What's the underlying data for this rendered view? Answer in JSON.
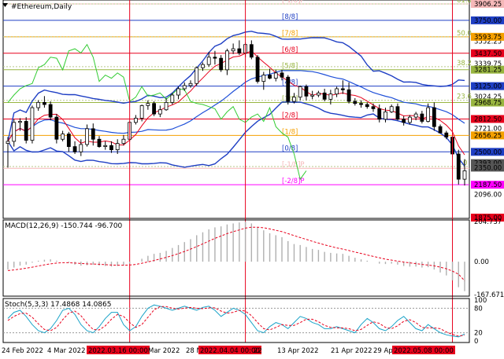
{
  "header": {
    "title": "#Ethereum,Daily"
  },
  "colors": {
    "background": "#ffffff",
    "frame": "#000000",
    "candle_bull": "#ffffff",
    "candle_bear": "#000000",
    "bollinger": "#1f3fc4",
    "ma_fast": "#e8001c",
    "ma_slow": "#1e4fd8",
    "ichimoku_lagging": "#33cc33",
    "macd_signal": "#e8001c",
    "macd_hist": "#b0b0b0",
    "stoch_main": "#1aa3c8",
    "stoch_signal": "#e8001c",
    "vline": "#e8001c",
    "label_red": "#e8001c",
    "label_blue": "#1f3fc4",
    "label_orange": "#f5a000",
    "label_green": "#98b540",
    "label_magenta": "#ff00ff",
    "label_pink": "#f5b8b8"
  },
  "chart_data": [
    {
      "type": "candlestick",
      "title": "#Ethereum,Daily",
      "x": [
        "24 Feb 2022",
        "25 Feb 2022",
        "26 Feb 2022",
        "27 Feb 2022",
        "28 Feb 2022",
        "1 Mar 2022",
        "2 Mar 2022",
        "3 Mar 2022",
        "4 Mar 2022",
        "5 Mar 2022",
        "6 Mar 2022",
        "7 Mar 2022",
        "8 Mar 2022",
        "9 Mar 2022",
        "10 Mar 2022",
        "11 Mar 2022",
        "12 Mar 2022",
        "13 Mar 2022",
        "14 Mar 2022",
        "15 Mar 2022",
        "16 Mar 2022",
        "17 Mar 2022",
        "18 Mar 2022",
        "19 Mar 2022",
        "20 Mar 2022",
        "21 Mar 2022",
        "22 Mar 2022",
        "23 Mar 2022",
        "24 Mar 2022",
        "25 Mar 2022",
        "26 Mar 2022",
        "27 Mar 2022",
        "28 Mar 2022",
        "29 Mar 2022",
        "30 Mar 2022",
        "31 Mar 2022",
        "1 Apr 2022",
        "2 Apr 2022",
        "3 Apr 2022",
        "4 Apr 2022",
        "5 Apr 2022",
        "6 Apr 2022",
        "7 Apr 2022",
        "8 Apr 2022",
        "9 Apr 2022",
        "10 Apr 2022",
        "11 Apr 2022",
        "12 Apr 2022",
        "13 Apr 2022",
        "14 Apr 2022",
        "15 Apr 2022",
        "16 Apr 2022",
        "17 Apr 2022",
        "18 Apr 2022",
        "19 Apr 2022",
        "20 Apr 2022",
        "21 Apr 2022",
        "22 Apr 2022",
        "23 Apr 2022",
        "24 Apr 2022",
        "25 Apr 2022",
        "26 Apr 2022",
        "27 Apr 2022",
        "28 Apr 2022",
        "29 Apr 2022",
        "30 Apr 2022",
        "1 May 2022",
        "2 May 2022",
        "3 May 2022",
        "4 May 2022",
        "5 May 2022",
        "6 May 2022",
        "7 May 2022",
        "8 May 2022",
        "9 May 2022",
        "10 May 2022"
      ],
      "open": [
        2580,
        2600,
        2780,
        2790,
        2610,
        2920,
        2970,
        2950,
        2830,
        2620,
        2670,
        2550,
        2500,
        2570,
        2720,
        2620,
        2550,
        2560,
        2520,
        2580,
        2620,
        2780,
        2820,
        2940,
        2960,
        2860,
        2900,
        2970,
        3040,
        3100,
        3130,
        3150,
        3300,
        3330,
        3400,
        3390,
        3280,
        3460,
        3480,
        3440,
        3520,
        3400,
        3170,
        3230,
        3200,
        3250,
        3210,
        2980,
        3020,
        3120,
        3030,
        3040,
        3060,
        3000,
        3050,
        3100,
        3090,
        2980,
        2960,
        2950,
        2930,
        2910,
        2810,
        2880,
        2930,
        2810,
        2780,
        2830,
        2860,
        2790,
        2920,
        2740,
        2680,
        2640,
        2480,
        2240
      ],
      "high": [
        2640,
        2810,
        2820,
        2830,
        2940,
        2990,
        3030,
        2980,
        2860,
        2700,
        2690,
        2600,
        2620,
        2760,
        2770,
        2650,
        2600,
        2600,
        2620,
        2660,
        2790,
        2850,
        2950,
        2990,
        2980,
        2940,
        3010,
        3060,
        3120,
        3160,
        3180,
        3310,
        3350,
        3450,
        3460,
        3420,
        3480,
        3530,
        3560,
        3540,
        3560,
        3420,
        3260,
        3290,
        3280,
        3280,
        3230,
        3060,
        3130,
        3140,
        3080,
        3080,
        3100,
        3090,
        3120,
        3180,
        3160,
        3010,
        2990,
        2970,
        2960,
        2950,
        2920,
        2950,
        2960,
        2840,
        2850,
        2880,
        2890,
        2960,
        2970,
        2760,
        2700,
        2660,
        2520,
        2430
      ],
      "low": [
        2350,
        2550,
        2700,
        2580,
        2580,
        2890,
        2920,
        2800,
        2580,
        2600,
        2500,
        2480,
        2460,
        2550,
        2560,
        2540,
        2520,
        2490,
        2480,
        2560,
        2600,
        2760,
        2790,
        2900,
        2840,
        2830,
        2890,
        2950,
        3000,
        3080,
        3110,
        3130,
        3270,
        3310,
        3330,
        3260,
        3230,
        3430,
        3420,
        3400,
        3380,
        3150,
        3090,
        3190,
        3170,
        3180,
        2950,
        2960,
        2990,
        2990,
        3000,
        3020,
        2980,
        2950,
        3020,
        3050,
        2960,
        2940,
        2920,
        2910,
        2880,
        2780,
        2780,
        2870,
        2800,
        2750,
        2760,
        2800,
        2770,
        2780,
        2700,
        2680,
        2620,
        2450,
        2190,
        2180
      ],
      "close": [
        2600,
        2780,
        2790,
        2610,
        2920,
        2970,
        2950,
        2830,
        2620,
        2670,
        2550,
        2500,
        2570,
        2720,
        2620,
        2550,
        2560,
        2520,
        2580,
        2620,
        2780,
        2820,
        2940,
        2960,
        2860,
        2900,
        2970,
        3040,
        3100,
        3130,
        3150,
        3300,
        3330,
        3400,
        3390,
        3280,
        3460,
        3480,
        3440,
        3520,
        3400,
        3170,
        3230,
        3200,
        3250,
        3210,
        2980,
        3020,
        3120,
        3030,
        3040,
        3060,
        3000,
        3050,
        3100,
        3090,
        2980,
        2960,
        2950,
        2930,
        2910,
        2810,
        2880,
        2930,
        2810,
        2780,
        2830,
        2860,
        2790,
        2920,
        2740,
        2680,
        2640,
        2480,
        2240,
        2320
      ],
      "y_ticks": [
        3906.25,
        3750.0,
        3552.25,
        3437.5,
        3339.75,
        3281.25,
        3125.0,
        3024.25,
        2968.75,
        2812.5,
        2721.0,
        2656.25,
        2500.0,
        2393.0,
        2187.5,
        2096.0,
        1875.0
      ],
      "ylim": [
        1875,
        3906.25
      ],
      "murrey_levels": [
        {
          "label": "[-1/8]P",
          "value": 3906.25,
          "color": "#f5b8b8"
        },
        {
          "label": "[8/8]",
          "value": 3750.0,
          "color": "#1f3fc4"
        },
        {
          "label": "[7/8]",
          "value": 3593.75,
          "color": "#f5a000"
        },
        {
          "label": "[6/8]",
          "value": 3437.5,
          "color": "#e8001c"
        },
        {
          "label": "[5/8]",
          "value": 3281.25,
          "color": "#98b540"
        },
        {
          "label": "[4/8]",
          "value": 3125.0,
          "color": "#1f3fc4"
        },
        {
          "label": "[3/8]",
          "value": 2968.75,
          "color": "#98b540"
        },
        {
          "label": "[2/8]",
          "value": 2812.5,
          "color": "#e8001c"
        },
        {
          "label": "[1/8]",
          "value": 2656.25,
          "color": "#f5a000"
        },
        {
          "label": "[0/8]",
          "value": 2500.0,
          "color": "#1f3fc4"
        },
        {
          "label": "[-1/8]P",
          "value": 2343.75,
          "color": "#f5b8b8"
        },
        {
          "label": "[-2/8]P",
          "value": 2187.5,
          "color": "#ff00ff"
        }
      ],
      "fibo_labels": [
        {
          "label": "61.8",
          "value": 3906.25
        },
        {
          "label": "50.0",
          "value": 3593.75
        },
        {
          "label": "38.2",
          "value": 3310.0
        },
        {
          "label": "23.6",
          "value": 2990.0
        },
        {
          "label": "0.0",
          "value": 2360.0
        }
      ],
      "highlighted_prices": [
        {
          "label": "3906.25",
          "color": "#f5b8b8"
        },
        {
          "label": "3750.00",
          "color": "#1f3fc4"
        },
        {
          "label": "3593.75",
          "color": "#f5a000"
        },
        {
          "label": "3437.50",
          "color": "#e8001c"
        },
        {
          "label": "3281.25",
          "color": "#98b540"
        },
        {
          "label": "3125.00",
          "color": "#1f3fc4"
        },
        {
          "label": "2968.75",
          "color": "#98b540"
        },
        {
          "label": "2812.50",
          "color": "#e8001c"
        },
        {
          "label": "2656.25",
          "color": "#f5a000"
        },
        {
          "label": "2500.00",
          "color": "#1f3fc4"
        },
        {
          "label": "2393.00",
          "color": "#555555"
        },
        {
          "label": "2350.00",
          "color": "#555555"
        },
        {
          "label": "2187.50",
          "color": "#ff00ff"
        },
        {
          "label": "1875.00",
          "color": "#e8001c"
        }
      ]
    },
    {
      "type": "bar",
      "title": "MACD(12,26,9) -150.744 -96.700",
      "y_ticks": [
        204.737,
        0.0,
        -167.671
      ],
      "ylim": [
        -167.671,
        204.737
      ],
      "macd": [
        -40,
        -30,
        -20,
        -15,
        -5,
        5,
        10,
        12,
        5,
        0,
        -5,
        -15,
        -20,
        -18,
        -15,
        -20,
        -22,
        -25,
        -22,
        -20,
        -10,
        0,
        15,
        30,
        40,
        45,
        55,
        70,
        85,
        100,
        115,
        135,
        150,
        165,
        175,
        180,
        190,
        195,
        200,
        204,
        195,
        175,
        160,
        145,
        135,
        125,
        105,
        90,
        85,
        75,
        65,
        60,
        50,
        45,
        42,
        40,
        30,
        20,
        12,
        5,
        0,
        -10,
        -12,
        -10,
        -15,
        -22,
        -25,
        -25,
        -30,
        -28,
        -40,
        -55,
        -70,
        -95,
        -130,
        -150
      ],
      "signal": [
        -45,
        -42,
        -38,
        -33,
        -28,
        -22,
        -16,
        -11,
        -7,
        -5,
        -5,
        -7,
        -9,
        -11,
        -12,
        -13,
        -15,
        -17,
        -18,
        -18,
        -17,
        -14,
        -8,
        -1,
        6,
        14,
        22,
        31,
        41,
        52,
        64,
        77,
        91,
        105,
        119,
        131,
        143,
        153,
        162,
        171,
        176,
        176,
        173,
        167,
        160,
        153,
        143,
        133,
        123,
        114,
        104,
        95,
        86,
        78,
        70,
        64,
        57,
        49,
        42,
        34,
        27,
        20,
        13,
        8,
        3,
        -2,
        -6,
        -10,
        -14,
        -17,
        -21,
        -28,
        -36,
        -48,
        -64,
        -97
      ]
    },
    {
      "type": "line",
      "title": "Stoch(5,3,3) 17.4868 14.0865",
      "y_ticks": [
        100,
        80,
        20,
        0
      ],
      "ylim": [
        0,
        100
      ],
      "series": [
        {
          "name": "%K",
          "values": [
            55,
            70,
            75,
            60,
            40,
            25,
            20,
            30,
            50,
            75,
            80,
            65,
            40,
            25,
            20,
            35,
            55,
            70,
            70,
            40,
            25,
            35,
            60,
            80,
            88,
            85,
            80,
            75,
            80,
            85,
            80,
            75,
            82,
            85,
            75,
            60,
            70,
            80,
            75,
            65,
            45,
            25,
            20,
            35,
            45,
            40,
            30,
            45,
            60,
            55,
            45,
            40,
            30,
            30,
            35,
            30,
            25,
            20,
            40,
            55,
            45,
            30,
            25,
            35,
            50,
            60,
            45,
            30,
            25,
            40,
            30,
            20,
            15,
            12,
            10,
            17
          ]
        },
        {
          "name": "%D",
          "values": [
            50,
            60,
            67,
            68,
            58,
            42,
            28,
            25,
            33,
            52,
            68,
            73,
            62,
            43,
            28,
            27,
            37,
            53,
            65,
            60,
            45,
            33,
            40,
            58,
            76,
            84,
            84,
            80,
            78,
            80,
            82,
            80,
            79,
            81,
            81,
            73,
            68,
            70,
            75,
            73,
            62,
            45,
            30,
            27,
            33,
            40,
            38,
            38,
            45,
            53,
            53,
            47,
            38,
            33,
            32,
            32,
            30,
            25,
            28,
            38,
            47,
            43,
            33,
            30,
            37,
            48,
            52,
            45,
            33,
            32,
            32,
            30,
            22,
            16,
            12,
            14
          ]
        }
      ]
    }
  ],
  "x_axis_labels": [
    {
      "text": "24 Feb 2022",
      "highlight": false
    },
    {
      "text": "4 Mar 2022",
      "highlight": false
    },
    {
      "text": "2022.03.16 00:00",
      "highlight": true
    },
    {
      "text": "Mar 2022",
      "highlight": false
    },
    {
      "text": "28 M",
      "highlight": false
    },
    {
      "text": "2022.04.04 00:00",
      "highlight": true
    },
    {
      "text": "22",
      "highlight": false
    },
    {
      "text": "13 Apr 2022",
      "highlight": false
    },
    {
      "text": "21 Apr 2022",
      "highlight": false
    },
    {
      "text": "29 Apr",
      "highlight": false
    },
    {
      "text": "2022.05.08 00:00",
      "highlight": true
    }
  ]
}
